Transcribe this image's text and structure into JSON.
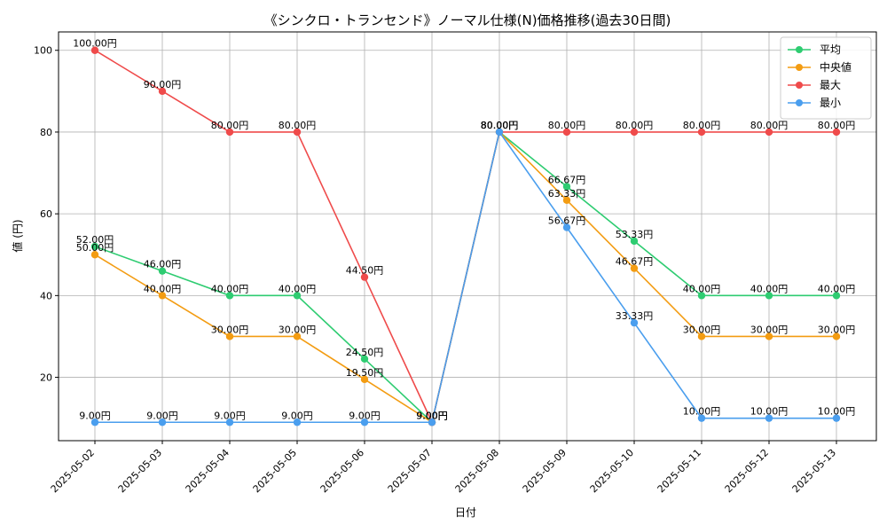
{
  "chart_data": {
    "type": "line",
    "title": "《シンクロ・トランセンド》ノーマル仕様(N)価格推移(過去30日間)",
    "xlabel": "日付",
    "ylabel": "値 (円)",
    "ylim": [
      4.5,
      104.5
    ],
    "yticks": [
      20,
      40,
      60,
      80,
      100
    ],
    "grid": true,
    "legend_position": "top-right",
    "label_suffix": "円",
    "categories": [
      "2025-05-02",
      "2025-05-03",
      "2025-05-04",
      "2025-05-05",
      "2025-05-06",
      "2025-05-07",
      "2025-05-08",
      "2025-05-09",
      "2025-05-10",
      "2025-05-11",
      "2025-05-12",
      "2025-05-13"
    ],
    "series": [
      {
        "name": "平均",
        "color": "#2ecc71",
        "values": [
          52.0,
          46.0,
          40.0,
          40.0,
          24.5,
          9.0,
          80.0,
          66.67,
          53.33,
          40.0,
          40.0,
          40.0
        ]
      },
      {
        "name": "中央値",
        "color": "#f39c12",
        "values": [
          50.0,
          40.0,
          30.0,
          30.0,
          19.5,
          9.0,
          80.0,
          63.33,
          46.67,
          30.0,
          30.0,
          30.0
        ]
      },
      {
        "name": "最大",
        "color": "#ef4b4b",
        "values": [
          100.0,
          90.0,
          80.0,
          80.0,
          44.5,
          9.0,
          80.0,
          80.0,
          80.0,
          80.0,
          80.0,
          80.0
        ]
      },
      {
        "name": "最小",
        "color": "#4a9eee",
        "values": [
          9.0,
          9.0,
          9.0,
          9.0,
          9.0,
          9.0,
          80.0,
          56.67,
          33.33,
          10.0,
          10.0,
          10.0
        ]
      }
    ]
  }
}
